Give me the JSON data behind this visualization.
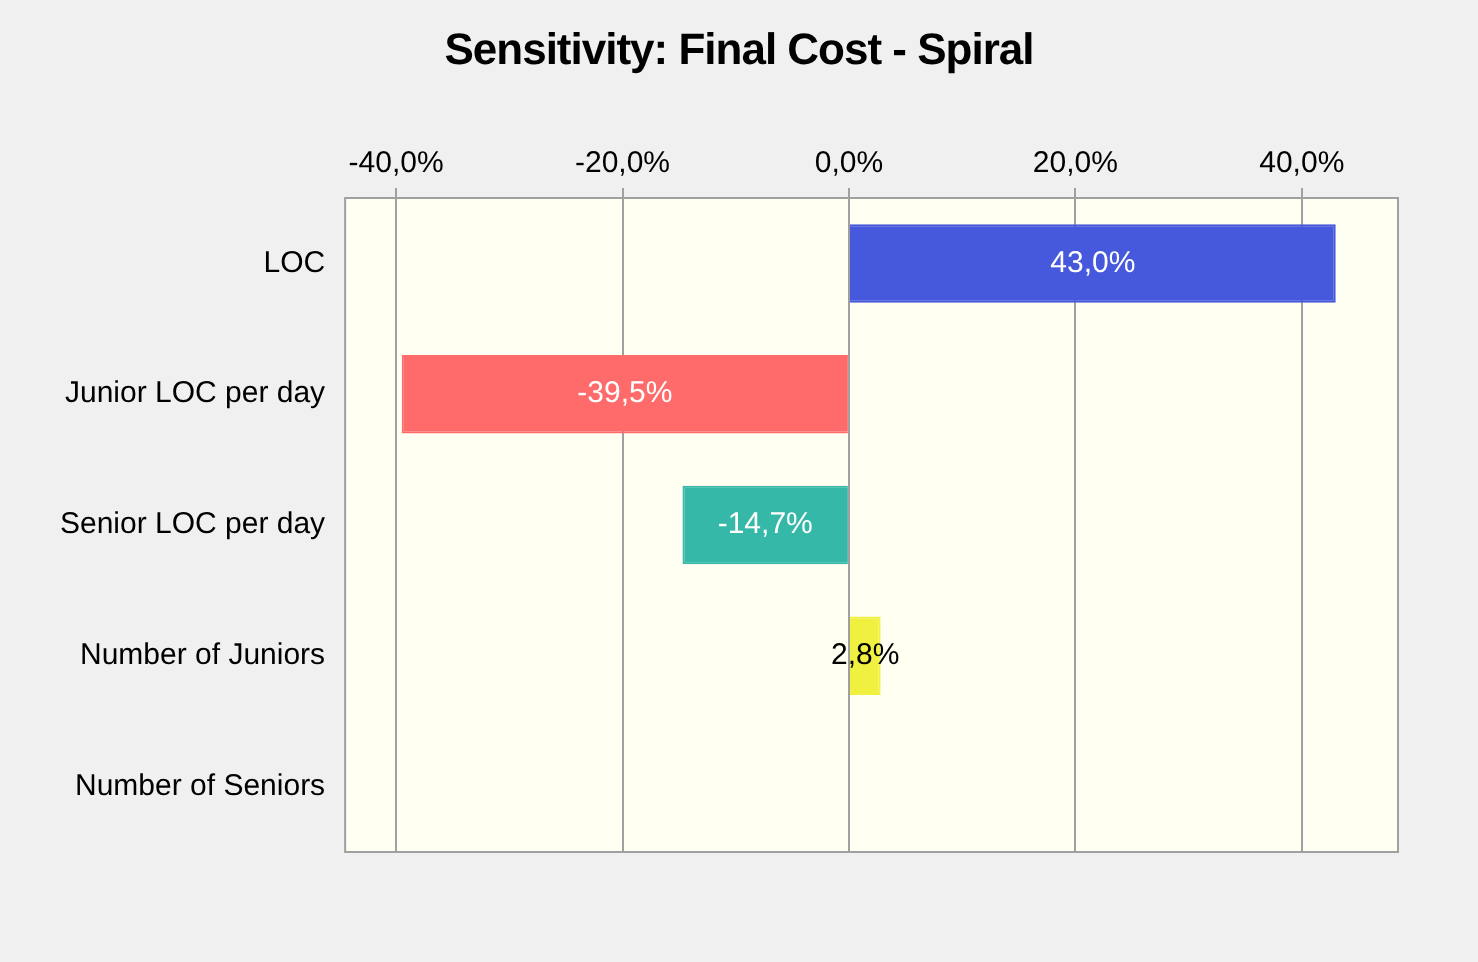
{
  "chart_data": {
    "type": "bar",
    "orientation": "horizontal",
    "title": "Sensitivity: Final Cost - Spiral",
    "categories": [
      "LOC",
      "Junior LOC per day",
      "Senior LOC per day",
      "Number of Juniors",
      "Number of Seniors"
    ],
    "values": [
      43.0,
      -39.5,
      -14.7,
      2.8,
      0
    ],
    "colors": [
      "#4658dc",
      "#ff6b6b",
      "#36b8a8",
      "#f0f040",
      "#8ab8e8"
    ],
    "value_labels": [
      "43,0%",
      "-39,5%",
      "-14,7%",
      "2,8%",
      null
    ],
    "xlim": [
      -44.5,
      48.5
    ],
    "xticks": [
      {
        "value": -40,
        "label": "-40,0%"
      },
      {
        "value": -20,
        "label": "-20,0%"
      },
      {
        "value": 0,
        "label": "0,0%"
      },
      {
        "value": 20,
        "label": "20,0%"
      },
      {
        "value": 40,
        "label": "40,0%"
      }
    ],
    "grid": "x",
    "legend": false
  }
}
